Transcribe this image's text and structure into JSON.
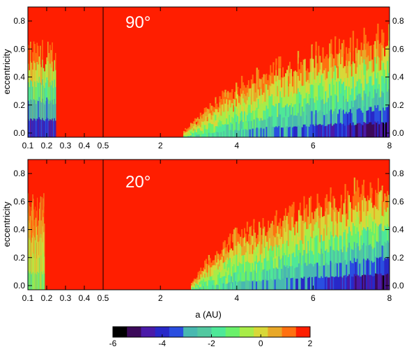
{
  "chart_data": [
    {
      "type": "heatmap",
      "panel": "top",
      "annotation": "90°",
      "ylabel": "eccentricity",
      "xlabel": "",
      "x_axis_segments": [
        {
          "range": [
            0.1,
            0.5
          ],
          "ticks": [
            "0.1",
            "0.2",
            "0.3",
            "0.4",
            "0.5"
          ],
          "tick_values": [
            0.1,
            0.2,
            0.3,
            0.4,
            0.5
          ]
        },
        {
          "range": [
            0.5,
            8
          ],
          "ticks": [
            "2",
            "4",
            "6",
            "8"
          ],
          "tick_values": [
            2,
            4,
            6,
            8
          ]
        }
      ],
      "ylim": [
        -0.03,
        0.9
      ],
      "y_ticks": [
        "0.0",
        "0.2",
        "0.4",
        "0.6",
        "0.8"
      ],
      "y_tick_values": [
        0.0,
        0.2,
        0.4,
        0.6,
        0.8
      ],
      "background_value": 2,
      "inner_region": {
        "x_range": [
          0.1,
          0.25
        ],
        "e_max_approx": 0.7,
        "low_e_value": -4
      },
      "stable_boundary_e": [
        {
          "a": 2.6,
          "e": 0.02
        },
        {
          "a": 3.0,
          "e": 0.12
        },
        {
          "a": 3.5,
          "e": 0.25
        },
        {
          "a": 4.0,
          "e": 0.35
        },
        {
          "a": 5.0,
          "e": 0.48
        },
        {
          "a": 6.0,
          "e": 0.58
        },
        {
          "a": 7.0,
          "e": 0.65
        },
        {
          "a": 8.0,
          "e": 0.72
        }
      ]
    },
    {
      "type": "heatmap",
      "panel": "bottom",
      "annotation": "20°",
      "ylabel": "eccentricity",
      "xlabel": "a (AU)",
      "x_axis_segments": [
        {
          "range": [
            0.1,
            0.5
          ],
          "ticks": [
            "0.1",
            "0.2",
            "0.3",
            "0.4",
            "0.5"
          ],
          "tick_values": [
            0.1,
            0.2,
            0.3,
            0.4,
            0.5
          ]
        },
        {
          "range": [
            0.5,
            8
          ],
          "ticks": [
            "2",
            "4",
            "6",
            "8"
          ],
          "tick_values": [
            2,
            4,
            6,
            8
          ]
        }
      ],
      "ylim": [
        -0.03,
        0.9
      ],
      "y_ticks": [
        "0.0",
        "0.2",
        "0.4",
        "0.6",
        "0.8"
      ],
      "y_tick_values": [
        0.0,
        0.2,
        0.4,
        0.6,
        0.8
      ],
      "background_value": 2,
      "inner_region": {
        "x_range": [
          0.1,
          0.19
        ],
        "e_max_approx": 0.66,
        "low_e_value": -1
      },
      "stable_boundary_e": [
        {
          "a": 2.8,
          "e": 0.02
        },
        {
          "a": 3.2,
          "e": 0.18
        },
        {
          "a": 4.0,
          "e": 0.38
        },
        {
          "a": 5.0,
          "e": 0.52
        },
        {
          "a": 6.0,
          "e": 0.62
        },
        {
          "a": 7.0,
          "e": 0.7
        },
        {
          "a": 8.0,
          "e": 0.75
        }
      ]
    }
  ],
  "colorbar": {
    "range": [
      -6,
      2
    ],
    "ticks": [
      "-6",
      "-4",
      "-2",
      "0",
      "2"
    ],
    "tick_values": [
      -6,
      -4,
      -2,
      0,
      2
    ],
    "colors": [
      "#000000",
      "#3c0a5a",
      "#4a1aa8",
      "#2828c8",
      "#2a4ee0",
      "#48b8b0",
      "#52c8a0",
      "#4ee898",
      "#6af06a",
      "#a8ec48",
      "#d8d838",
      "#e8a828",
      "#ff7010",
      "#ff1e00"
    ]
  },
  "colors": {
    "background_red": "#ff1e00",
    "text_white": "#ffffff"
  }
}
